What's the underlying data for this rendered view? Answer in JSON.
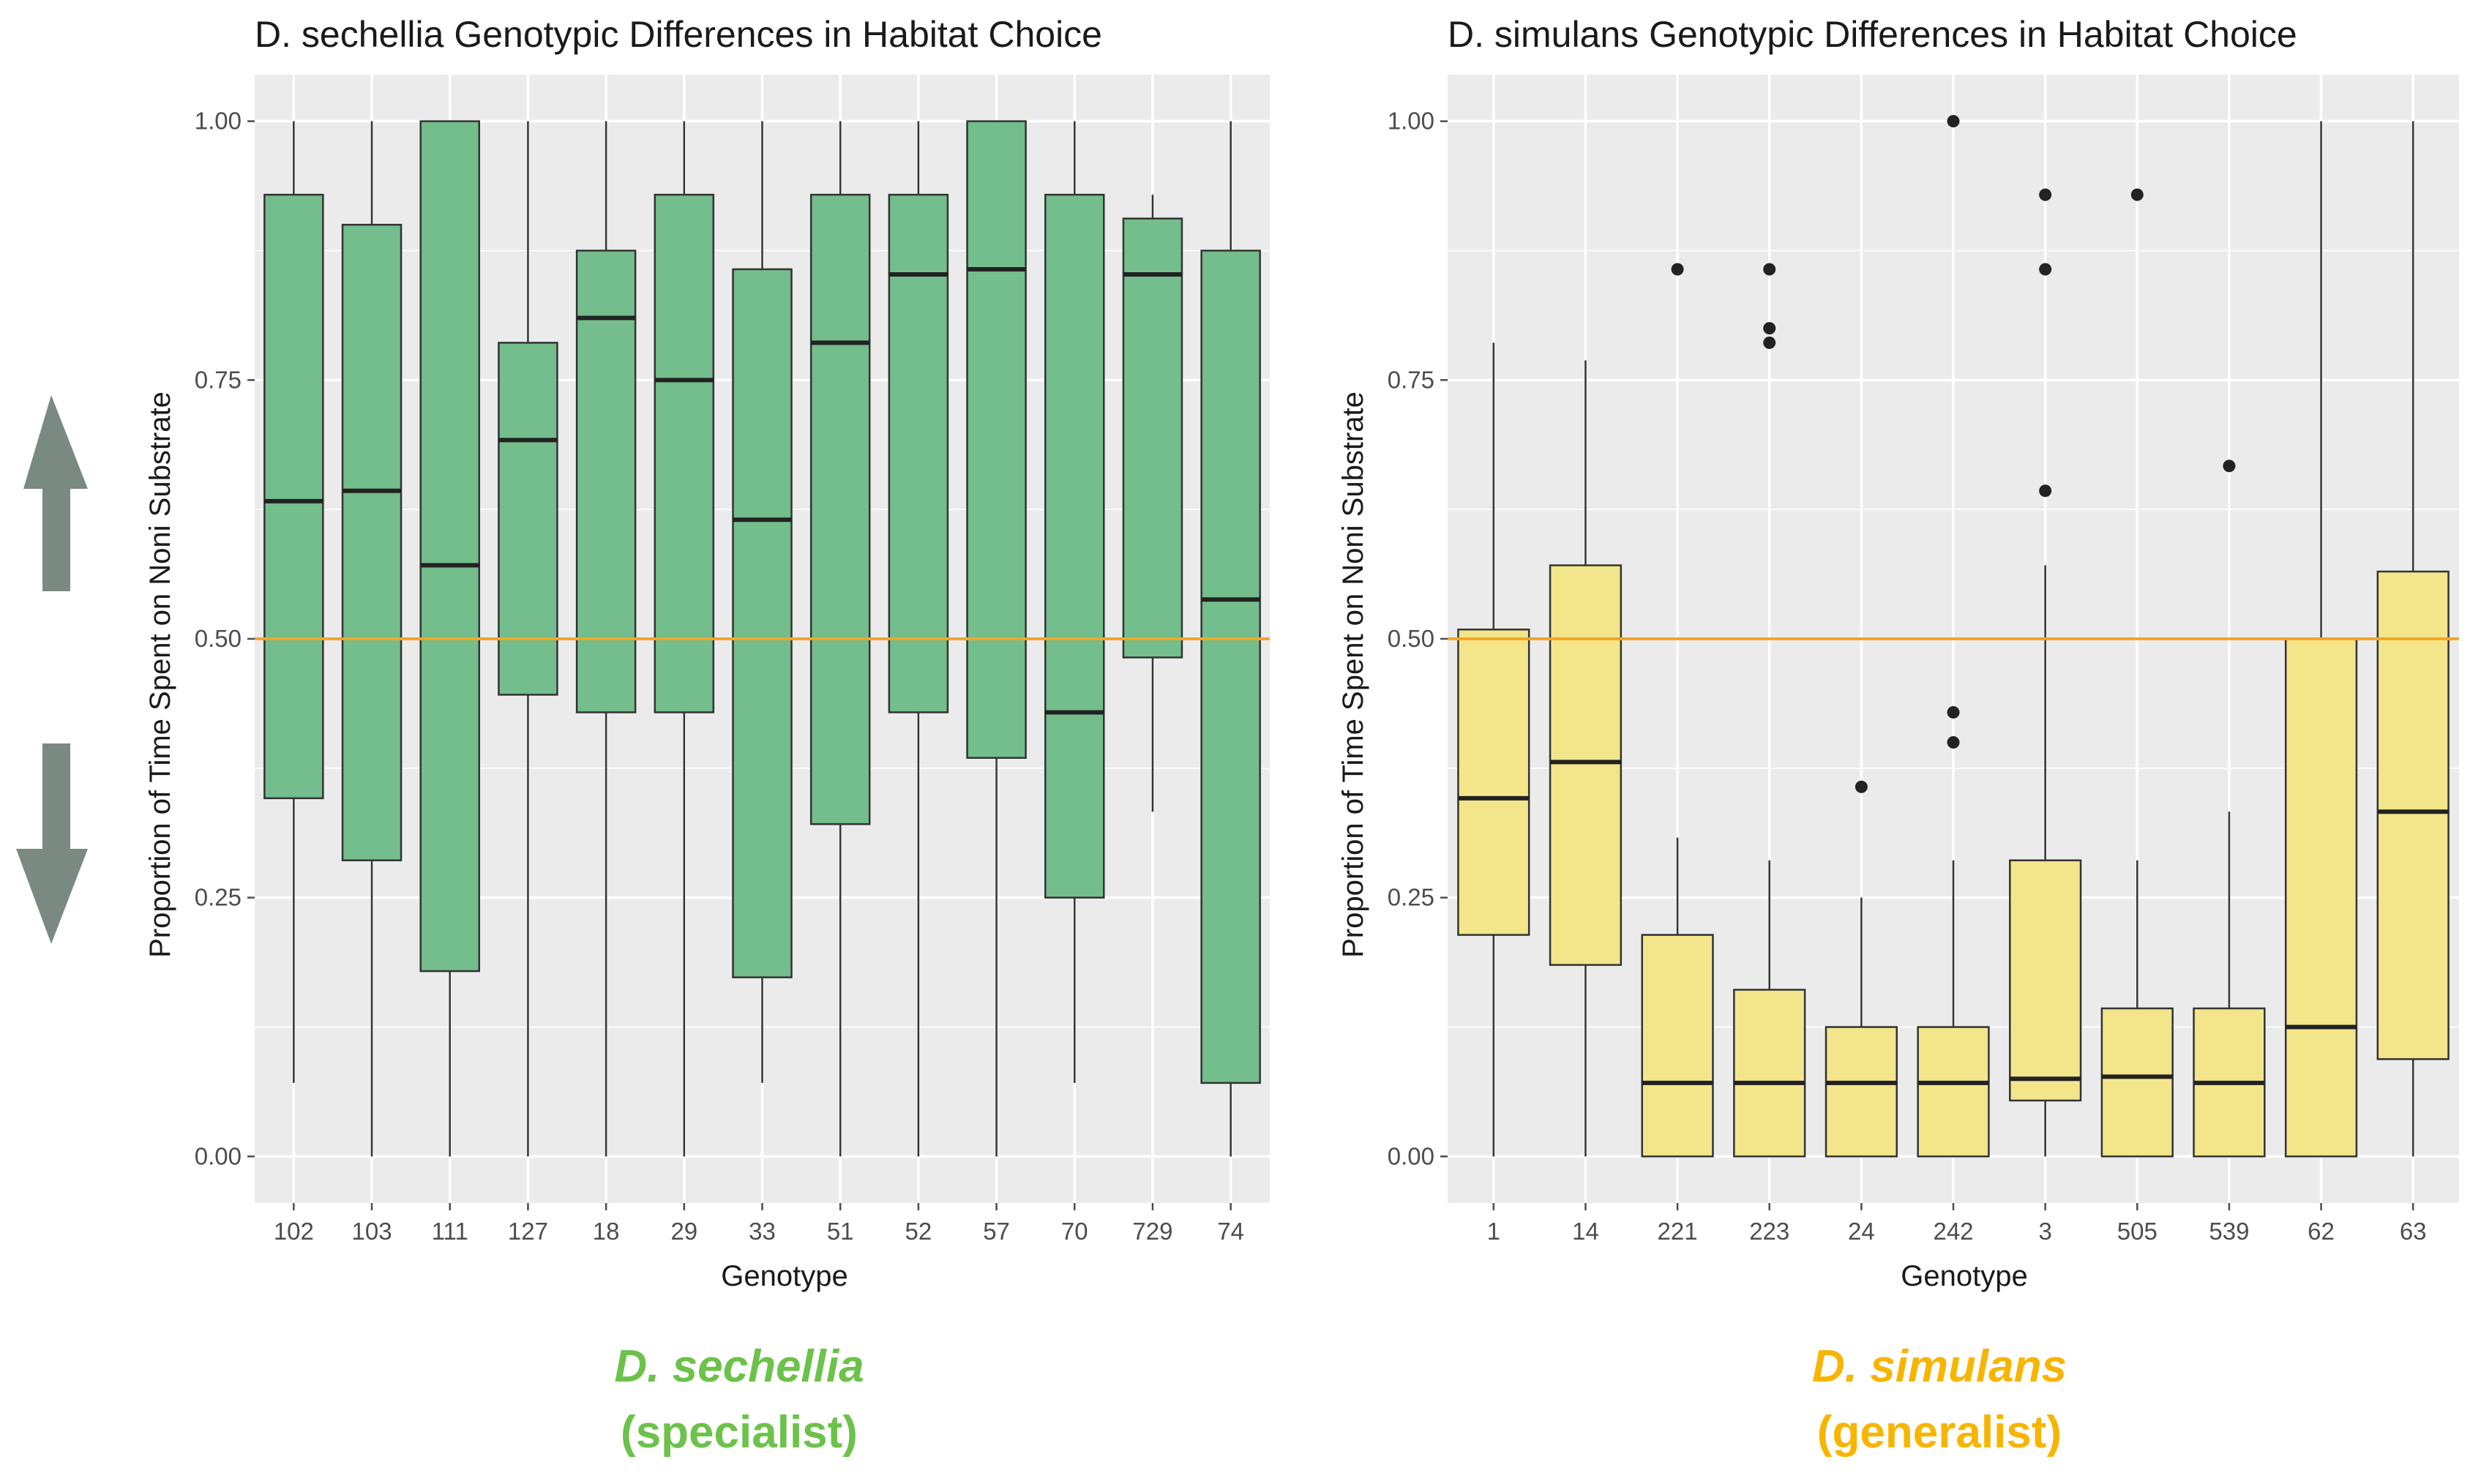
{
  "colors": {
    "panel_bg": "#ebebeb",
    "grid": "#ffffff",
    "sechellia_fill": "#74bd8c",
    "simulans_fill": "#f3e68a",
    "box_stroke": "#333333",
    "reference_line": "#f5a623",
    "arrow": "#7a8a83",
    "sechellia_caption": "#6cc24a",
    "simulans_caption": "#f7b500"
  },
  "icons": {
    "up": "up-arrow-icon",
    "down": "down-arrow-icon"
  },
  "chart_data": [
    {
      "type": "boxplot",
      "title": "D. sechellia Genotypic Differences in Habitat Choice",
      "xlabel": "Genotype",
      "ylabel": "Proportion of Time Spent on Noni Substrate",
      "ylim": [
        -0.045,
        1.045
      ],
      "yticks": [
        0,
        0.25,
        0.5,
        0.75,
        1
      ],
      "ytick_labels": [
        "0.00",
        "0.25",
        "0.50",
        "0.75",
        "1.00"
      ],
      "reference_line": 0.5,
      "categories": [
        "102",
        "103",
        "111",
        "127",
        "18",
        "29",
        "33",
        "51",
        "52",
        "57",
        "70",
        "729",
        "74"
      ],
      "boxes": [
        {
          "min": 0.071,
          "q1": 0.346,
          "median": 0.633,
          "q3": 0.929,
          "max": 1.0,
          "outliers": []
        },
        {
          "min": 0.0,
          "q1": 0.286,
          "median": 0.643,
          "q3": 0.9,
          "max": 1.0,
          "outliers": []
        },
        {
          "min": 0.0,
          "q1": 0.179,
          "median": 0.571,
          "q3": 1.0,
          "max": 1.0,
          "outliers": []
        },
        {
          "min": 0.0,
          "q1": 0.446,
          "median": 0.692,
          "q3": 0.786,
          "max": 1.0,
          "outliers": []
        },
        {
          "min": 0.0,
          "q1": 0.429,
          "median": 0.81,
          "q3": 0.875,
          "max": 1.0,
          "outliers": []
        },
        {
          "min": 0.0,
          "q1": 0.429,
          "median": 0.75,
          "q3": 0.929,
          "max": 1.0,
          "outliers": []
        },
        {
          "min": 0.071,
          "q1": 0.173,
          "median": 0.615,
          "q3": 0.857,
          "max": 1.0,
          "outliers": []
        },
        {
          "min": 0.0,
          "q1": 0.321,
          "median": 0.786,
          "q3": 0.929,
          "max": 1.0,
          "outliers": []
        },
        {
          "min": 0.0,
          "q1": 0.429,
          "median": 0.852,
          "q3": 0.929,
          "max": 1.0,
          "outliers": []
        },
        {
          "min": 0.0,
          "q1": 0.385,
          "median": 0.857,
          "q3": 1.0,
          "max": 1.0,
          "outliers": []
        },
        {
          "min": 0.071,
          "q1": 0.25,
          "median": 0.429,
          "q3": 0.929,
          "max": 1.0,
          "outliers": []
        },
        {
          "min": 0.333,
          "q1": 0.482,
          "median": 0.852,
          "q3": 0.906,
          "max": 0.929,
          "outliers": []
        },
        {
          "min": 0.0,
          "q1": 0.071,
          "median": 0.538,
          "q3": 0.875,
          "max": 1.0,
          "outliers": []
        }
      ],
      "caption_species": "D. sechellia",
      "caption_role": "(specialist)"
    },
    {
      "type": "boxplot",
      "title": "D. simulans Genotypic Differences in Habitat Choice",
      "xlabel": "Genotype",
      "ylabel": "Proportion of Time Spent on Noni Substrate",
      "ylim": [
        -0.045,
        1.045
      ],
      "yticks": [
        0,
        0.25,
        0.5,
        0.75,
        1
      ],
      "ytick_labels": [
        "0.00",
        "0.25",
        "0.50",
        "0.75",
        "1.00"
      ],
      "reference_line": 0.5,
      "categories": [
        "1",
        "14",
        "221",
        "223",
        "24",
        "242",
        "3",
        "505",
        "539",
        "62",
        "63"
      ],
      "boxes": [
        {
          "min": 0.0,
          "q1": 0.214,
          "median": 0.346,
          "q3": 0.509,
          "max": 0.786,
          "outliers": []
        },
        {
          "min": 0.0,
          "q1": 0.185,
          "median": 0.381,
          "q3": 0.571,
          "max": 0.769,
          "outliers": []
        },
        {
          "min": 0.0,
          "q1": 0.0,
          "median": 0.071,
          "q3": 0.214,
          "max": 0.308,
          "outliers": [
            0.857
          ]
        },
        {
          "min": 0.0,
          "q1": 0.0,
          "median": 0.071,
          "q3": 0.161,
          "max": 0.286,
          "outliers": [
            0.857,
            0.8,
            0.786
          ]
        },
        {
          "min": 0.0,
          "q1": 0.0,
          "median": 0.071,
          "q3": 0.125,
          "max": 0.25,
          "outliers": [
            0.357
          ]
        },
        {
          "min": 0.0,
          "q1": 0.0,
          "median": 0.071,
          "q3": 0.125,
          "max": 0.286,
          "outliers": [
            1.0,
            0.429,
            0.4
          ]
        },
        {
          "min": 0.0,
          "q1": 0.054,
          "median": 0.075,
          "q3": 0.286,
          "max": 0.571,
          "outliers": [
            0.929,
            0.857,
            0.643
          ]
        },
        {
          "min": 0.0,
          "q1": 0.0,
          "median": 0.077,
          "q3": 0.143,
          "max": 0.286,
          "outliers": [
            0.929
          ]
        },
        {
          "min": 0.0,
          "q1": 0.0,
          "median": 0.071,
          "q3": 0.143,
          "max": 0.333,
          "outliers": [
            0.667
          ]
        },
        {
          "min": 0.0,
          "q1": 0.0,
          "median": 0.125,
          "q3": 0.5,
          "max": 1.0,
          "outliers": []
        },
        {
          "min": 0.0,
          "q1": 0.094,
          "median": 0.333,
          "q3": 0.565,
          "max": 1.0,
          "outliers": []
        }
      ],
      "caption_species": "D. simulans",
      "caption_role": "(generalist)"
    }
  ]
}
